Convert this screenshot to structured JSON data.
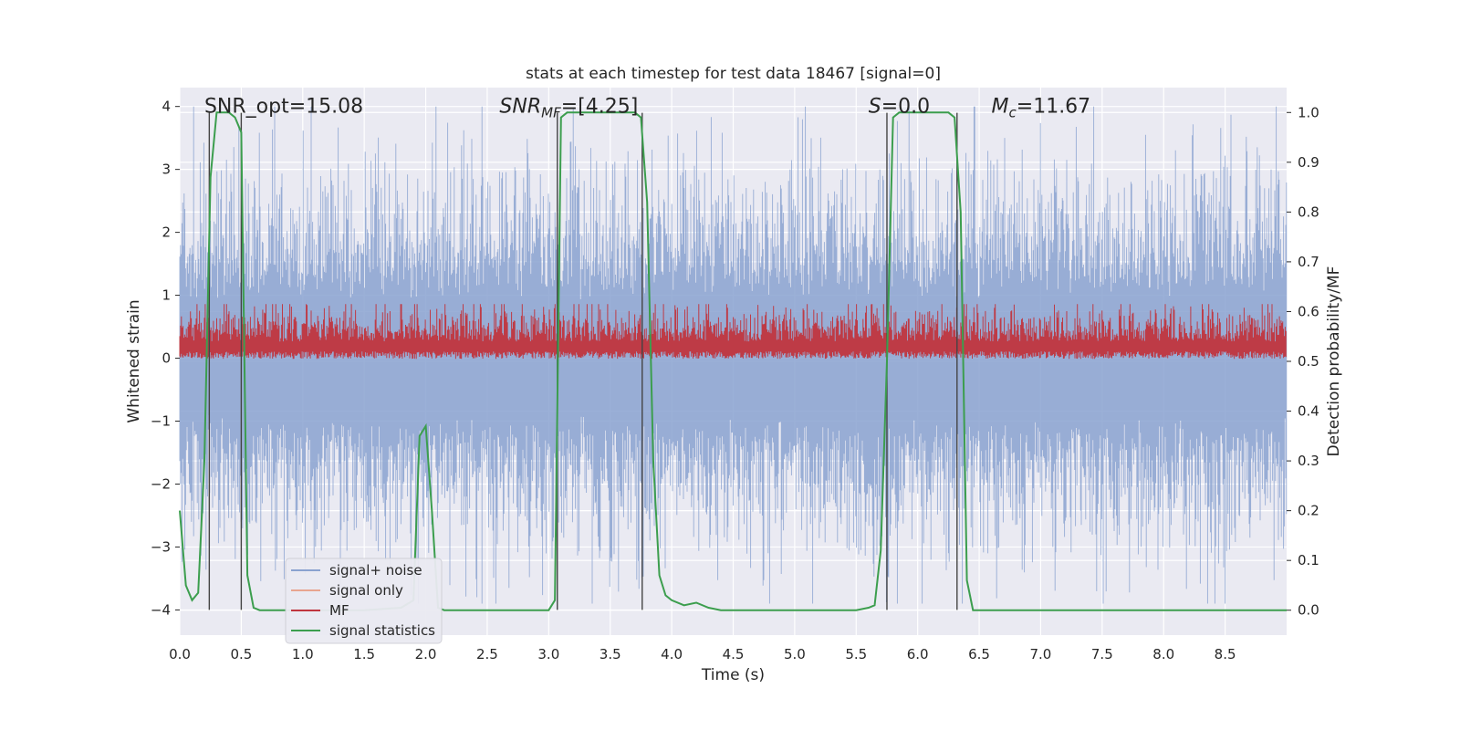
{
  "chart_data": {
    "type": "line",
    "title": "stats at each timestep for test data 18467 [signal=0]",
    "xlabel": "Time (s)",
    "ylabel_left": "Whitened strain",
    "ylabel_right": "Detection probability/MF",
    "xlim": [
      0.0,
      9.0
    ],
    "ylim_left": [
      -4.4,
      4.3
    ],
    "ylim_right": [
      -0.05,
      1.05
    ],
    "xticks": [
      "0.0",
      "0.5",
      "1.0",
      "1.5",
      "2.0",
      "2.5",
      "3.0",
      "3.5",
      "4.0",
      "4.5",
      "5.0",
      "5.5",
      "6.0",
      "6.5",
      "7.0",
      "7.5",
      "8.0",
      "8.5"
    ],
    "yticks_left": [
      "4",
      "3",
      "2",
      "1",
      "0",
      "−1",
      "−2",
      "−3",
      "−4"
    ],
    "yticks_right": [
      "1.0",
      "0.9",
      "0.8",
      "0.7",
      "0.6",
      "0.5",
      "0.4",
      "0.3",
      "0.2",
      "0.1",
      "0.0"
    ],
    "grid": true,
    "legend_placement": "lower-left",
    "annotations": [
      {
        "text": "SNR_opt=15.08",
        "x": 0.2,
        "y": 4.0
      },
      {
        "text_main": "SNR",
        "text_sub": "MF",
        "text_rest": "=[4.25]",
        "x": 2.6,
        "y": 4.0
      },
      {
        "text_main": "S",
        "text_sub": "",
        "text_rest": "=0.0",
        "x": 5.6,
        "y": 4.0
      },
      {
        "text_main": "M",
        "text_sub": "c",
        "text_rest": "=11.67",
        "x": 6.6,
        "y": 4.0
      }
    ],
    "vertical_lines": [
      0.24,
      0.5,
      3.07,
      3.76,
      5.75,
      6.32
    ],
    "series": [
      {
        "name": "signal+ noise",
        "color": "#8aa2d0",
        "axis": "left",
        "style": "dense-noise",
        "amplitude": 2.6
      },
      {
        "name": "signal only",
        "color": "#e8a590",
        "axis": "left",
        "values": []
      },
      {
        "name": "MF",
        "color": "#c0353e",
        "axis": "right",
        "style": "dense-noise-positive",
        "center": 0.55,
        "spread": 0.06
      },
      {
        "name": "signal statistics",
        "color": "#3c9e4e",
        "axis": "right",
        "x": [
          0.0,
          0.05,
          0.1,
          0.15,
          0.2,
          0.25,
          0.3,
          0.35,
          0.4,
          0.45,
          0.5,
          0.55,
          0.6,
          0.65,
          0.7,
          1.0,
          1.5,
          1.8,
          1.9,
          1.95,
          2.0,
          2.05,
          2.1,
          2.15,
          2.2,
          2.5,
          3.0,
          3.05,
          3.1,
          3.15,
          3.5,
          3.7,
          3.75,
          3.8,
          3.85,
          3.9,
          3.95,
          4.0,
          4.1,
          4.2,
          4.3,
          4.4,
          4.5,
          5.0,
          5.5,
          5.6,
          5.65,
          5.7,
          5.75,
          5.8,
          5.85,
          6.0,
          6.25,
          6.3,
          6.35,
          6.4,
          6.45,
          6.5,
          7.0,
          8.0,
          9.0
        ],
        "y": [
          0.2,
          0.05,
          0.02,
          0.035,
          0.3,
          0.87,
          1.0,
          1.0,
          1.0,
          0.99,
          0.96,
          0.07,
          0.005,
          0.0,
          0.0,
          0.0,
          0.0,
          0.005,
          0.02,
          0.35,
          0.37,
          0.2,
          0.005,
          0.0,
          0.0,
          0.0,
          0.0,
          0.02,
          0.99,
          1.0,
          1.0,
          1.0,
          0.99,
          0.82,
          0.3,
          0.07,
          0.03,
          0.02,
          0.01,
          0.015,
          0.005,
          0.0,
          0.0,
          0.0,
          0.0,
          0.005,
          0.01,
          0.12,
          0.5,
          0.99,
          1.0,
          1.0,
          1.0,
          0.99,
          0.8,
          0.06,
          0.0,
          0.0,
          0.0,
          0.0,
          0.0
        ]
      }
    ]
  }
}
